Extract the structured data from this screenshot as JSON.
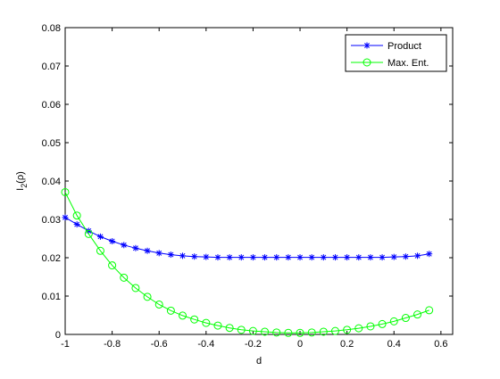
{
  "chart_data": {
    "type": "line",
    "title": "",
    "xlabel": "d",
    "ylabel_main": "I",
    "ylabel_sub": "2",
    "ylabel_rest": "(ρ)",
    "xlim": [
      -1,
      0.65
    ],
    "ylim": [
      0,
      0.08
    ],
    "x_ticks": [
      -1,
      -0.8,
      -0.6,
      -0.4,
      -0.2,
      0,
      0.2,
      0.4,
      0.6
    ],
    "x_tick_labels": [
      "-1",
      "-0.8",
      "-0.6",
      "-0.4",
      "-0.2",
      "0",
      "0.2",
      "0.4",
      "0.6"
    ],
    "y_ticks": [
      0,
      0.01,
      0.02,
      0.03,
      0.04,
      0.05,
      0.06,
      0.07,
      0.08
    ],
    "y_tick_labels": [
      "0",
      "0.01",
      "0.02",
      "0.03",
      "0.04",
      "0.05",
      "0.06",
      "0.07",
      "0.08"
    ],
    "grid": false,
    "legend_position": "top-right",
    "x": [
      -1,
      -0.95,
      -0.9,
      -0.85,
      -0.8,
      -0.75,
      -0.7,
      -0.65,
      -0.6,
      -0.55,
      -0.5,
      -0.45,
      -0.4,
      -0.35,
      -0.3,
      -0.25,
      -0.2,
      -0.15,
      -0.1,
      -0.05,
      0,
      0.05,
      0.1,
      0.15,
      0.2,
      0.25,
      0.3,
      0.35,
      0.4,
      0.45,
      0.5,
      0.55
    ],
    "series": [
      {
        "name": "Product",
        "color": "#0000ff",
        "marker": "star",
        "values": [
          0.0305,
          0.0287,
          0.027,
          0.0255,
          0.0243,
          0.0233,
          0.0225,
          0.0218,
          0.0212,
          0.0208,
          0.0205,
          0.0203,
          0.0202,
          0.0201,
          0.0201,
          0.0201,
          0.0201,
          0.0201,
          0.0201,
          0.0201,
          0.0201,
          0.0201,
          0.0201,
          0.0201,
          0.0201,
          0.0201,
          0.0201,
          0.0201,
          0.0202,
          0.0203,
          0.0205,
          0.021
        ]
      },
      {
        "name": "Max. Ent.",
        "color": "#00ff00",
        "marker": "circle",
        "values": [
          0.0371,
          0.031,
          0.0262,
          0.0218,
          0.018,
          0.0148,
          0.0121,
          0.0098,
          0.0078,
          0.0062,
          0.0049,
          0.0039,
          0.003,
          0.0023,
          0.0017,
          0.0012,
          0.0009,
          0.0007,
          0.0005,
          0.0004,
          0.0004,
          0.0005,
          0.0007,
          0.0009,
          0.0012,
          0.0016,
          0.0021,
          0.0027,
          0.0034,
          0.0043,
          0.0052,
          0.0063
        ]
      }
    ]
  }
}
